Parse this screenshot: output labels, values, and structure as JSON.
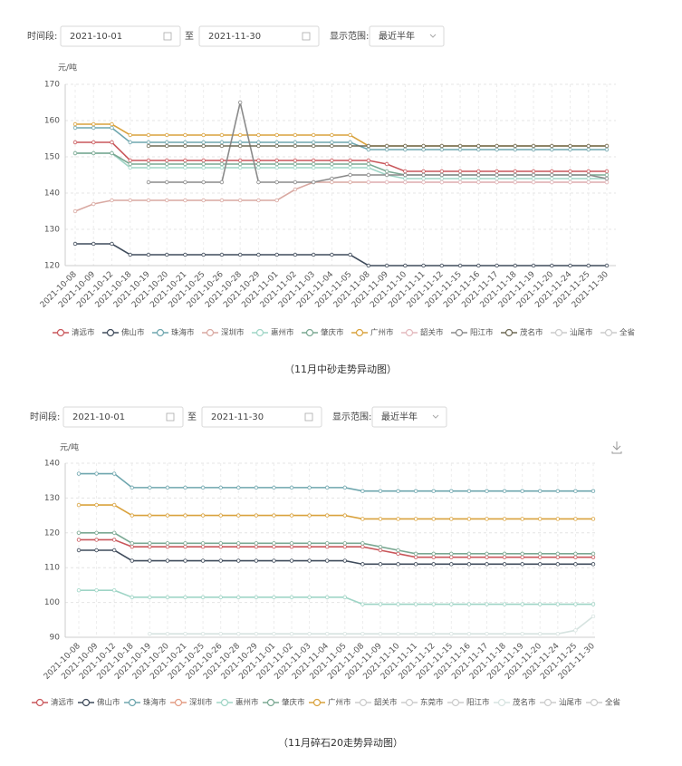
{
  "chart_data": [
    {
      "type": "line",
      "controls": {
        "period_label": "时间段:",
        "start": "2021-10-01",
        "to": "至",
        "end": "2021-11-30",
        "range_label": "显示范围:",
        "range": "最近半年"
      },
      "y_label": "元/吨",
      "caption": "（11月中砂走势异动图）",
      "categories": [
        "2021-10-08",
        "2021-10-09",
        "2021-10-12",
        "2021-10-18",
        "2021-10-19",
        "2021-10-20",
        "2021-10-21",
        "2021-10-25",
        "2021-10-26",
        "2021-10-28",
        "2021-10-29",
        "2021-11-01",
        "2021-11-02",
        "2021-11-03",
        "2021-11-04",
        "2021-11-05",
        "2021-11-08",
        "2021-11-09",
        "2021-11-10",
        "2021-11-11",
        "2021-11-12",
        "2021-11-15",
        "2021-11-16",
        "2021-11-17",
        "2021-11-18",
        "2021-11-19",
        "2021-11-20",
        "2021-11-24",
        "2021-11-25",
        "2021-11-30"
      ],
      "ylim": [
        120,
        170
      ],
      "yticks": [
        120,
        130,
        140,
        150,
        160,
        170
      ],
      "grid": true,
      "series": [
        {
          "name": "清远市",
          "color": "#c9575b",
          "values": [
            154,
            154,
            154,
            149,
            149,
            149,
            149,
            149,
            149,
            149,
            149,
            149,
            149,
            149,
            149,
            149,
            149,
            148,
            146,
            146,
            146,
            146,
            146,
            146,
            146,
            146,
            146,
            146,
            146,
            146
          ]
        },
        {
          "name": "佛山市",
          "color": "#3f4b5b",
          "values": [
            126,
            126,
            126,
            123,
            123,
            123,
            123,
            123,
            123,
            123,
            123,
            123,
            123,
            123,
            123,
            123,
            120,
            120,
            120,
            120,
            120,
            120,
            120,
            120,
            120,
            120,
            120,
            120,
            120,
            120
          ]
        },
        {
          "name": "珠海市",
          "color": "#6ea6ae",
          "values": [
            158,
            158,
            158,
            154,
            154,
            154,
            154,
            154,
            154,
            154,
            154,
            154,
            154,
            154,
            154,
            154,
            152,
            152,
            152,
            152,
            152,
            152,
            152,
            152,
            152,
            152,
            152,
            152,
            152,
            152
          ]
        },
        {
          "name": "深圳市",
          "color": "#d9a9a2",
          "values": [
            135,
            137,
            138,
            138,
            138,
            138,
            138,
            138,
            138,
            138,
            138,
            138,
            141,
            143,
            143,
            143,
            143,
            143,
            143,
            143,
            143,
            143,
            143,
            143,
            143,
            143,
            143,
            143,
            143,
            143
          ]
        },
        {
          "name": "惠州市",
          "color": "#9fd5c6",
          "values": [
            151,
            151,
            151,
            147,
            147,
            147,
            147,
            147,
            147,
            147,
            147,
            147,
            147,
            147,
            147,
            147,
            147,
            145,
            144,
            144,
            144,
            144,
            144,
            144,
            144,
            144,
            144,
            144,
            144,
            144
          ]
        },
        {
          "name": "肇庆市",
          "color": "#7aa892",
          "values": [
            151,
            151,
            151,
            148,
            148,
            148,
            148,
            148,
            148,
            148,
            148,
            148,
            148,
            148,
            148,
            148,
            148,
            146,
            145,
            145,
            145,
            145,
            145,
            145,
            145,
            145,
            145,
            145,
            145,
            145
          ]
        },
        {
          "name": "广州市",
          "color": "#d9a23d",
          "values": [
            159,
            159,
            159,
            156,
            156,
            156,
            156,
            156,
            156,
            156,
            156,
            156,
            156,
            156,
            156,
            156,
            153,
            153,
            153,
            153,
            153,
            153,
            153,
            153,
            153,
            153,
            153,
            153,
            153,
            153
          ]
        },
        {
          "name": "韶关市",
          "color": "#e3b9bd",
          "values": [
            null,
            null,
            null,
            null,
            null,
            null,
            null,
            null,
            null,
            null,
            null,
            null,
            null,
            null,
            null,
            null,
            143,
            143,
            143,
            143,
            143,
            143,
            143,
            143,
            143,
            143,
            143,
            143,
            143,
            143
          ]
        },
        {
          "name": "阳江市",
          "color": "#8a8a8a",
          "values": [
            null,
            null,
            null,
            null,
            143,
            143,
            143,
            143,
            143,
            165,
            143,
            143,
            143,
            143,
            144,
            145,
            145,
            145,
            145,
            145,
            145,
            145,
            145,
            145,
            145,
            145,
            145,
            145,
            145,
            144
          ]
        },
        {
          "name": "茂名市",
          "color": "#6e6a55",
          "values": [
            null,
            null,
            null,
            null,
            153,
            153,
            153,
            153,
            153,
            153,
            153,
            153,
            153,
            153,
            153,
            153,
            153,
            153,
            153,
            153,
            153,
            153,
            153,
            153,
            153,
            153,
            153,
            153,
            153,
            153
          ]
        },
        {
          "name": "汕尾市",
          "color": "#cccccc",
          "hidden": true,
          "values": [
            null,
            null,
            null,
            null,
            null,
            null,
            null,
            null,
            null,
            null,
            null,
            null,
            null,
            null,
            null,
            null,
            null,
            null,
            null,
            null,
            null,
            null,
            null,
            null,
            null,
            null,
            null,
            null,
            null,
            null
          ]
        },
        {
          "name": "全省",
          "color": "#cccccc",
          "hidden": true,
          "values": [
            null,
            null,
            null,
            null,
            null,
            null,
            null,
            null,
            null,
            null,
            null,
            null,
            null,
            null,
            null,
            null,
            null,
            null,
            null,
            null,
            null,
            null,
            null,
            null,
            null,
            null,
            null,
            null,
            null,
            null
          ]
        }
      ]
    },
    {
      "type": "line",
      "controls": {
        "period_label": "时间段:",
        "start": "2021-10-01",
        "to": "至",
        "end": "2021-11-30",
        "range_label": "显示范围:",
        "range": "最近半年"
      },
      "y_label": "元/吨",
      "caption": "（11月碎石20走势异动图）",
      "categories": [
        "2021-10-08",
        "2021-10-09",
        "2021-10-12",
        "2021-10-18",
        "2021-10-19",
        "2021-10-20",
        "2021-10-21",
        "2021-10-25",
        "2021-10-26",
        "2021-10-28",
        "2021-10-29",
        "2021-11-01",
        "2021-11-02",
        "2021-11-03",
        "2021-11-04",
        "2021-11-05",
        "2021-11-08",
        "2021-11-09",
        "2021-11-10",
        "2021-11-11",
        "2021-11-12",
        "2021-11-15",
        "2021-11-16",
        "2021-11-17",
        "2021-11-18",
        "2021-11-19",
        "2021-11-20",
        "2021-11-24",
        "2021-11-25",
        "2021-11-30"
      ],
      "ylim": [
        90,
        140
      ],
      "yticks": [
        90,
        100,
        110,
        120,
        130,
        140
      ],
      "grid": true,
      "series": [
        {
          "name": "清远市",
          "color": "#c9575b",
          "values": [
            118,
            118,
            118,
            116,
            116,
            116,
            116,
            116,
            116,
            116,
            116,
            116,
            116,
            116,
            116,
            116,
            116,
            115,
            114,
            113,
            113,
            113,
            113,
            113,
            113,
            113,
            113,
            113,
            113,
            113
          ]
        },
        {
          "name": "佛山市",
          "color": "#3f4b5b",
          "values": [
            115,
            115,
            115,
            112,
            112,
            112,
            112,
            112,
            112,
            112,
            112,
            112,
            112,
            112,
            112,
            112,
            111,
            111,
            111,
            111,
            111,
            111,
            111,
            111,
            111,
            111,
            111,
            111,
            111,
            111
          ]
        },
        {
          "name": "珠海市",
          "color": "#6ea6ae",
          "values": [
            137,
            137,
            137,
            133,
            133,
            133,
            133,
            133,
            133,
            133,
            133,
            133,
            133,
            133,
            133,
            133,
            132,
            132,
            132,
            132,
            132,
            132,
            132,
            132,
            132,
            132,
            132,
            132,
            132,
            132
          ]
        },
        {
          "name": "深圳市",
          "color": "#e39c84",
          "values": [
            null,
            null,
            null,
            null,
            null,
            null,
            null,
            null,
            null,
            null,
            null,
            null,
            null,
            null,
            null,
            null,
            null,
            null,
            null,
            null,
            null,
            null,
            null,
            null,
            null,
            null,
            null,
            null,
            null,
            null
          ]
        },
        {
          "name": "惠州市",
          "color": "#9fd5c6",
          "values": [
            103.5,
            103.5,
            103.5,
            101.5,
            101.5,
            101.5,
            101.5,
            101.5,
            101.5,
            101.5,
            101.5,
            101.5,
            101.5,
            101.5,
            101.5,
            101.5,
            99.5,
            99.5,
            99.5,
            99.5,
            99.5,
            99.5,
            99.5,
            99.5,
            99.5,
            99.5,
            99.5,
            99.5,
            99.5,
            99.5
          ]
        },
        {
          "name": "肇庆市",
          "color": "#7aa892",
          "values": [
            120,
            120,
            120,
            117,
            117,
            117,
            117,
            117,
            117,
            117,
            117,
            117,
            117,
            117,
            117,
            117,
            117,
            116,
            115,
            114,
            114,
            114,
            114,
            114,
            114,
            114,
            114,
            114,
            114,
            114
          ]
        },
        {
          "name": "广州市",
          "color": "#d9a23d",
          "values": [
            128,
            128,
            128,
            125,
            125,
            125,
            125,
            125,
            125,
            125,
            125,
            125,
            125,
            125,
            125,
            125,
            124,
            124,
            124,
            124,
            124,
            124,
            124,
            124,
            124,
            124,
            124,
            124,
            124,
            124
          ]
        },
        {
          "name": "韶关市",
          "color": "#cccccc",
          "hidden": true,
          "values": [
            null,
            null,
            null,
            null,
            null,
            null,
            null,
            null,
            null,
            null,
            null,
            null,
            null,
            null,
            null,
            null,
            null,
            null,
            null,
            null,
            null,
            null,
            null,
            null,
            null,
            null,
            null,
            null,
            null,
            null
          ]
        },
        {
          "name": "东莞市",
          "color": "#cccccc",
          "hidden": true,
          "values": [
            null,
            null,
            null,
            null,
            null,
            null,
            null,
            null,
            null,
            null,
            null,
            null,
            null,
            null,
            null,
            null,
            null,
            null,
            null,
            null,
            null,
            null,
            null,
            null,
            null,
            null,
            null,
            null,
            null,
            null
          ]
        },
        {
          "name": "阳江市",
          "color": "#cccccc",
          "hidden": true,
          "values": [
            null,
            null,
            null,
            null,
            null,
            null,
            null,
            null,
            null,
            null,
            null,
            null,
            null,
            null,
            null,
            null,
            null,
            null,
            null,
            null,
            null,
            null,
            null,
            null,
            null,
            null,
            null,
            null,
            null,
            null
          ]
        },
        {
          "name": "茂名市",
          "color": "#d6e3e0",
          "values": [
            null,
            null,
            null,
            null,
            91,
            91,
            91,
            91,
            91,
            91,
            91,
            91,
            91,
            91,
            91,
            91,
            91,
            91,
            91,
            91,
            91,
            91,
            91,
            91,
            91,
            91,
            91,
            91,
            92,
            96
          ]
        },
        {
          "name": "汕尾市",
          "color": "#cccccc",
          "hidden": true,
          "values": [
            null,
            null,
            null,
            null,
            null,
            null,
            null,
            null,
            null,
            null,
            null,
            null,
            null,
            null,
            null,
            null,
            null,
            null,
            null,
            null,
            null,
            null,
            null,
            null,
            null,
            null,
            null,
            null,
            null,
            null
          ]
        },
        {
          "name": "全省",
          "color": "#cccccc",
          "hidden": true,
          "values": [
            null,
            null,
            null,
            null,
            null,
            null,
            null,
            null,
            null,
            null,
            null,
            null,
            null,
            null,
            null,
            null,
            null,
            null,
            null,
            null,
            null,
            null,
            null,
            null,
            null,
            null,
            null,
            null,
            null,
            null
          ]
        }
      ]
    }
  ]
}
